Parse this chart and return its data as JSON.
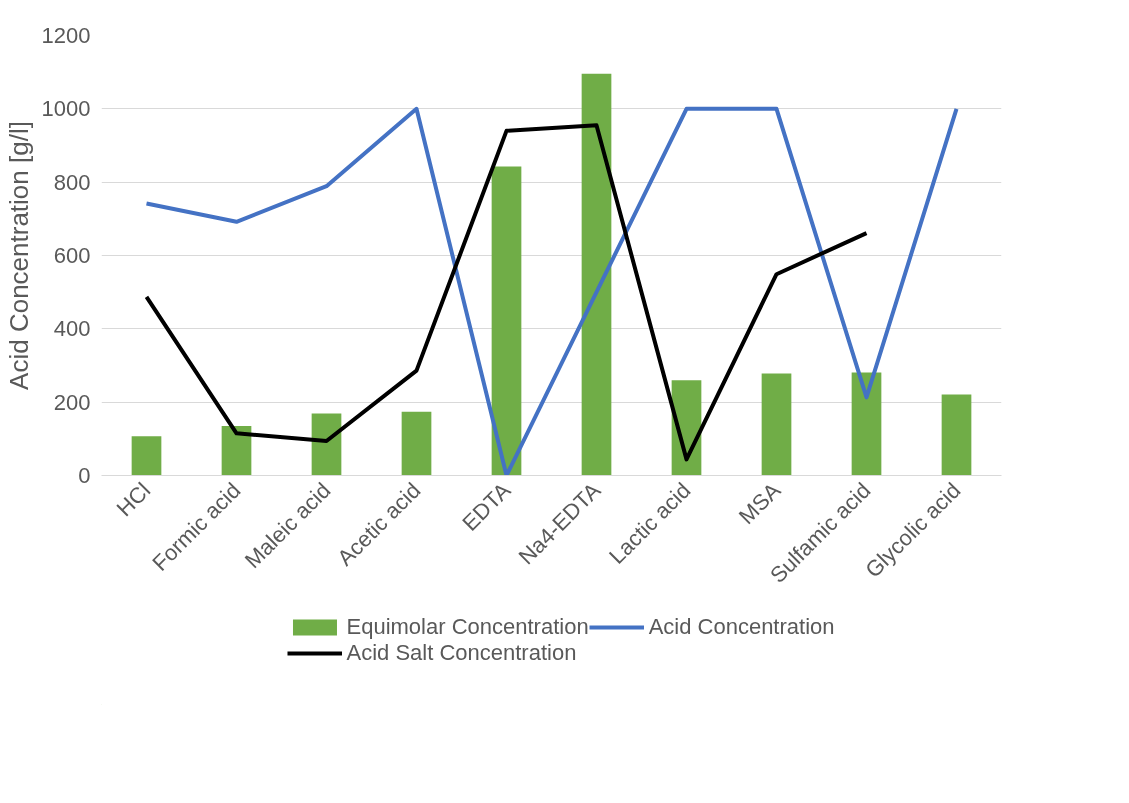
{
  "chart_data": {
    "type": "bar",
    "ylabel": "Acid Concentration [g/l]",
    "categories": [
      "HCl",
      "Formic acid",
      "Maleic acid",
      "Acetic acid",
      "EDTA",
      "Na4-EDTA",
      "Lactic acid",
      "MSA",
      "Sulfamic acid",
      "Glycolic acid"
    ],
    "series": [
      {
        "name": "Equimolar Concentration",
        "color": "#70ad47",
        "values": [
          107,
          135,
          169,
          174,
          843,
          1096,
          260,
          278,
          281,
          221
        ]
      },
      {
        "name": "Acid Concentration",
        "type": "line",
        "color": "#4472c4",
        "values": [
          742,
          692,
          789,
          1000,
          0,
          500,
          1000,
          1000,
          213,
          1000
        ]
      },
      {
        "name": "Acid Salt Concentration",
        "type": "line",
        "color": "#000000",
        "values": [
          487,
          115,
          94,
          286,
          940,
          955,
          44,
          549,
          661,
          null
        ]
      }
    ],
    "ylim": [
      0,
      1200
    ],
    "yticks": [
      0,
      200,
      400,
      600,
      800,
      1000,
      1200
    ],
    "grid": "y",
    "legend": "bottom"
  }
}
